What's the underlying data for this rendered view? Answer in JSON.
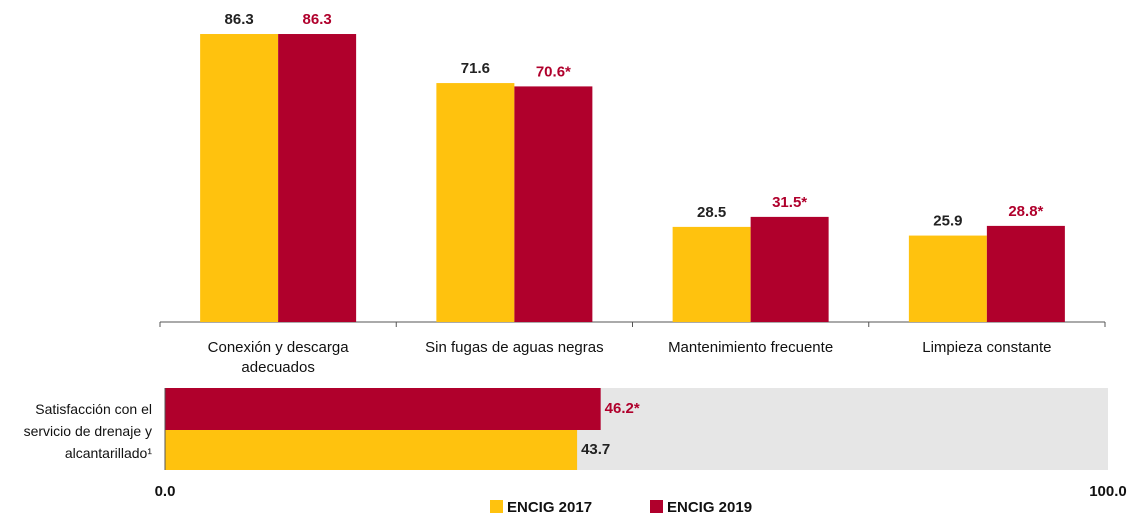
{
  "chart_data": [
    {
      "type": "bar",
      "categories": [
        "Conexión y descarga adecuados",
        "Sin fugas de aguas negras",
        "Mantenimiento frecuente",
        "Limpieza constante"
      ],
      "series": [
        {
          "name": "ENCIG 2017",
          "color": "#FFC20E",
          "values": [
            86.3,
            71.6,
            28.5,
            25.9
          ],
          "value_labels": [
            "86.3",
            "71.6",
            "28.5",
            "25.9"
          ]
        },
        {
          "name": "ENCIG 2019",
          "color": "#B0002C",
          "values": [
            86.3,
            70.6,
            31.5,
            28.8
          ],
          "value_labels": [
            "86.3",
            "70.6*",
            "31.5*",
            "28.8*"
          ]
        }
      ]
    },
    {
      "type": "hbar",
      "categories": [
        "Satisfacción con el servicio de drenaje y alcantarillado¹"
      ],
      "series": [
        {
          "color": "#B0002C",
          "values": [
            46.2
          ],
          "value_labels": [
            "46.2*"
          ]
        },
        {
          "color": "#FFC20E",
          "values": [
            43.7
          ],
          "value_labels": [
            "43.7"
          ]
        }
      ],
      "xlim": [
        0,
        100
      ],
      "xticks": [
        {
          "value": 0,
          "label": "0.0"
        },
        {
          "value": 100,
          "label": "100.0"
        }
      ]
    }
  ]
}
